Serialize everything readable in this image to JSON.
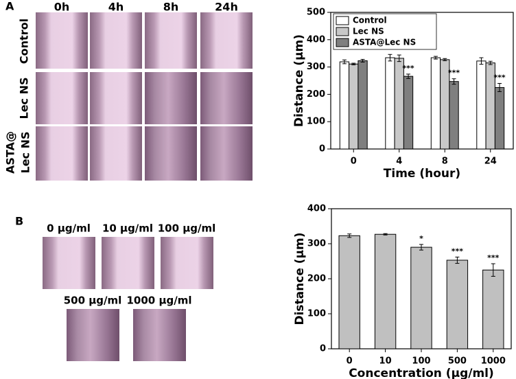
{
  "figure": {
    "panel_labels": [
      "A",
      "B"
    ],
    "time_labels": [
      "0h",
      "4h",
      "8h",
      "24h"
    ],
    "row_labels": [
      "Control",
      "Lec NS",
      [
        "ASTA@",
        "Lec NS"
      ]
    ],
    "conc_labels": [
      "0 μg/ml",
      "10 μg/ml",
      "100 μg/ml",
      "500 μg/ml",
      "1000 μg/ml"
    ]
  },
  "chart_data": [
    {
      "type": "bar",
      "x_label": "Time (hour)",
      "y_label": "Distance (μm)",
      "categories": [
        "0",
        "4",
        "8",
        "24"
      ],
      "series": [
        {
          "name": "Control",
          "color": "#ffffff",
          "values": [
            319,
            334,
            334,
            322
          ],
          "errors": [
            7,
            12,
            5,
            12
          ]
        },
        {
          "name": "Lec NS",
          "color": "#c8c8c8",
          "values": [
            311,
            332,
            327,
            315
          ],
          "errors": [
            3,
            12,
            4,
            6
          ]
        },
        {
          "name": "ASTA@Lec NS",
          "color": "#7f7f7f",
          "values": [
            323,
            266,
            247,
            225
          ],
          "errors": [
            5,
            8,
            10,
            15
          ],
          "significance": [
            null,
            "***",
            "***",
            "***"
          ]
        }
      ],
      "ylim": [
        0,
        500
      ],
      "yticks": [
        0,
        100,
        200,
        300,
        400,
        500
      ],
      "legend": "upper left"
    },
    {
      "type": "bar",
      "x_label": "Concentration (μg/ml)",
      "y_label": "Distance (μm)",
      "categories": [
        "0",
        "10",
        "100",
        "500",
        "1000"
      ],
      "series": [
        {
          "color": "#c0c0c0",
          "values": [
            323,
            327,
            290,
            253,
            225
          ],
          "errors": [
            5,
            2,
            8,
            9,
            18
          ],
          "significance": [
            null,
            null,
            "*",
            "***",
            "***"
          ]
        }
      ],
      "ylim": [
        0,
        400
      ],
      "yticks": [
        0,
        100,
        200,
        300,
        400
      ]
    }
  ]
}
